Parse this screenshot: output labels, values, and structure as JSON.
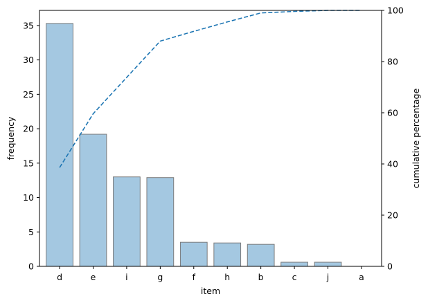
{
  "chart_data": {
    "type": "bar",
    "categories": [
      "d",
      "e",
      "i",
      "g",
      "f",
      "h",
      "b",
      "c",
      "j",
      "a"
    ],
    "series": [
      {
        "name": "",
        "type": "bar",
        "axis": "left",
        "values": [
          35.3,
          19.2,
          13.0,
          12.9,
          3.5,
          3.4,
          3.2,
          0.6,
          0.6,
          0.0
        ]
      },
      {
        "name": "",
        "type": "line",
        "axis": "right",
        "style": "dashed",
        "values": [
          38.6,
          59.6,
          73.8,
          88.0,
          91.8,
          95.5,
          99.0,
          99.6,
          100.0,
          100.0
        ]
      }
    ],
    "title": "",
    "xlabel": "item",
    "ylabel": "frequency",
    "ylabel_right": "cumulative percentage",
    "ylim": [
      0,
      37.2
    ],
    "ylim_right": [
      0,
      100
    ],
    "yticks": [
      "0",
      "5",
      "10",
      "15",
      "20",
      "25",
      "30",
      "35"
    ],
    "yticks_right": [
      "0",
      "20",
      "40",
      "60",
      "80",
      "100"
    ],
    "grid": false,
    "colors": {
      "bar_fill": "#a4c8e1",
      "bar_edge": "#7a7a7a",
      "line": "#1f77b4"
    }
  }
}
